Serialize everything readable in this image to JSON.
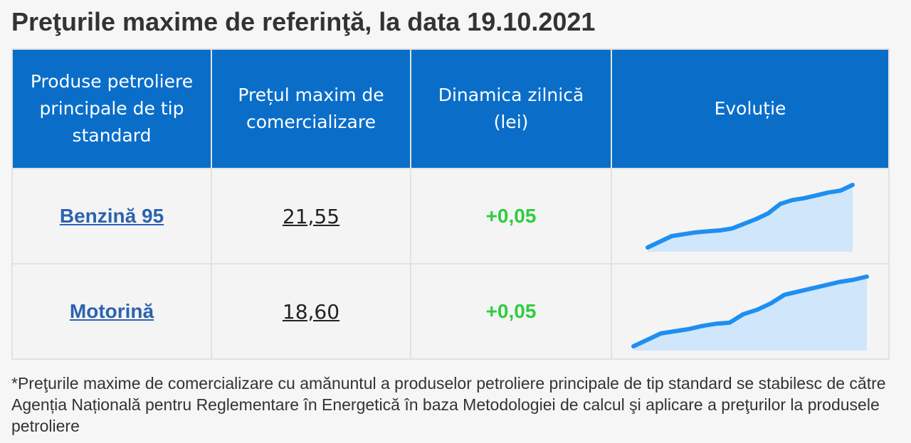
{
  "page": {
    "title": "Preţurile maxime de referinţă, la data 19.10.2021"
  },
  "table": {
    "headers": {
      "product": "Produse petroliere principale de tip standard",
      "price": "Prețul maxim de comercializare",
      "dynamics": "Dinamica zilnică (lei)",
      "evolution": "Evoluție"
    },
    "rows": [
      {
        "product": "Benzină 95",
        "price": "21,55",
        "dynamics": "+0,05",
        "sparkline": [
          17.3,
          17.6,
          17.9,
          18.0,
          18.1,
          18.15,
          18.2,
          18.3,
          18.55,
          18.8,
          19.1,
          19.6,
          19.8,
          19.9,
          20.05,
          20.2,
          20.3,
          20.6
        ]
      },
      {
        "product": "Motorină",
        "price": "18,60",
        "dynamics": "+0,05",
        "sparkline": [
          13.9,
          14.2,
          14.5,
          14.6,
          14.7,
          14.85,
          14.95,
          15.0,
          15.4,
          15.6,
          15.9,
          16.3,
          16.45,
          16.6,
          16.75,
          16.9,
          17.0,
          17.15
        ]
      }
    ]
  },
  "colors": {
    "header_bg": "#0a6ec9",
    "link": "#2c62b0",
    "positive": "#2ecc40",
    "sparkline_stroke": "#1e8ff0",
    "sparkline_fill": "#cfe6fb"
  },
  "footnote": "*Preţurile maxime de comercializare cu amănuntul a produselor petroliere principale de tip standard se stabilesc de către Agenția Națională pentru Reglementare în Energetică în baza Metodologiei de calcul şi aplicare a preţurilor la produsele petroliere"
}
